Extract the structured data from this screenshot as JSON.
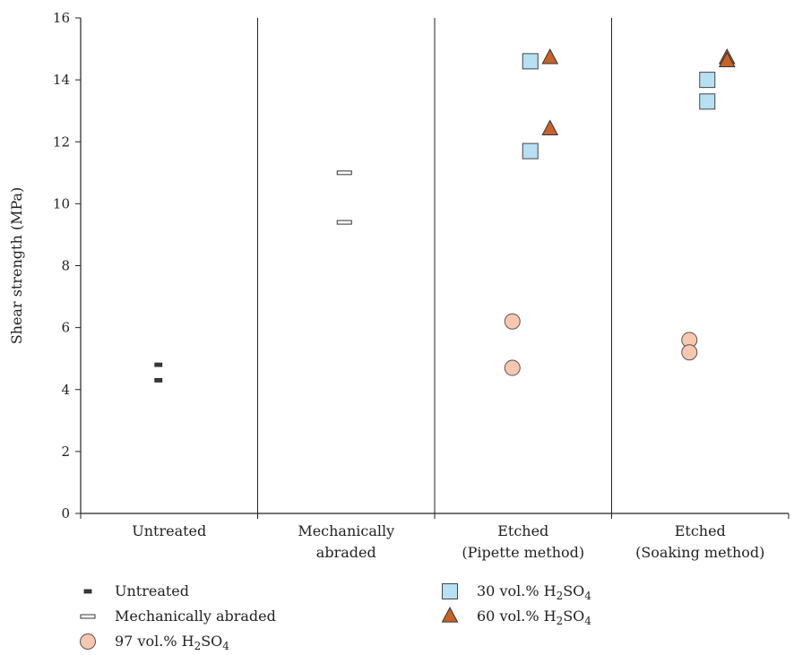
{
  "chart_data": {
    "type": "scatter",
    "ylabel": "Shear strength (MPa)",
    "ylim": [
      0,
      16
    ],
    "yticks": [
      0,
      2,
      4,
      6,
      8,
      10,
      12,
      14,
      16
    ],
    "grid": false,
    "legend_position": "bottom",
    "categories": [
      [
        "Untreated"
      ],
      [
        "Mechanically",
        "abraded"
      ],
      [
        "Etched",
        "(Pipette method)"
      ],
      [
        "Etched",
        "(Soaking method)"
      ]
    ],
    "series": [
      {
        "name": "Untreated",
        "label_main": "Untreated",
        "marker": "dash-filled",
        "color": "#3a3a3a",
        "points": [
          {
            "category": 0,
            "y": 4.8
          },
          {
            "category": 0,
            "y": 4.3
          }
        ]
      },
      {
        "name": "Mechanically abraded",
        "label_main": "Mechanically abraded",
        "marker": "dash-open",
        "color": "#ffffff",
        "points": [
          {
            "category": 1,
            "y": 11.0
          },
          {
            "category": 1,
            "y": 9.4
          }
        ]
      },
      {
        "name": "97 vol.% H2SO4",
        "label_main": "97 vol.% H",
        "label_sub1": "2",
        "label_mid": "SO",
        "label_sub2": "4",
        "marker": "circle",
        "color": "#f8c7b0",
        "points": [
          {
            "category": 2,
            "y": 6.2
          },
          {
            "category": 2,
            "y": 4.7
          },
          {
            "category": 3,
            "y": 5.6
          },
          {
            "category": 3,
            "y": 5.2
          }
        ]
      },
      {
        "name": "30 vol.% H2SO4",
        "label_main": "30 vol.% H",
        "label_sub1": "2",
        "label_mid": "SO",
        "label_sub2": "4",
        "marker": "square",
        "color": "#b7e0f3",
        "points": [
          {
            "category": 2,
            "y": 14.6
          },
          {
            "category": 2,
            "y": 11.7
          },
          {
            "category": 3,
            "y": 14.0
          },
          {
            "category": 3,
            "y": 13.3
          }
        ]
      },
      {
        "name": "60 vol.% H2SO4",
        "label_main": "60 vol.% H",
        "label_sub1": "2",
        "label_mid": "SO",
        "label_sub2": "4",
        "marker": "triangle",
        "color": "#c8622a",
        "points": [
          {
            "category": 2,
            "y": 14.7
          },
          {
            "category": 2,
            "y": 12.4
          },
          {
            "category": 3,
            "y": 14.7
          },
          {
            "category": 3,
            "y": 14.6
          }
        ]
      }
    ]
  }
}
